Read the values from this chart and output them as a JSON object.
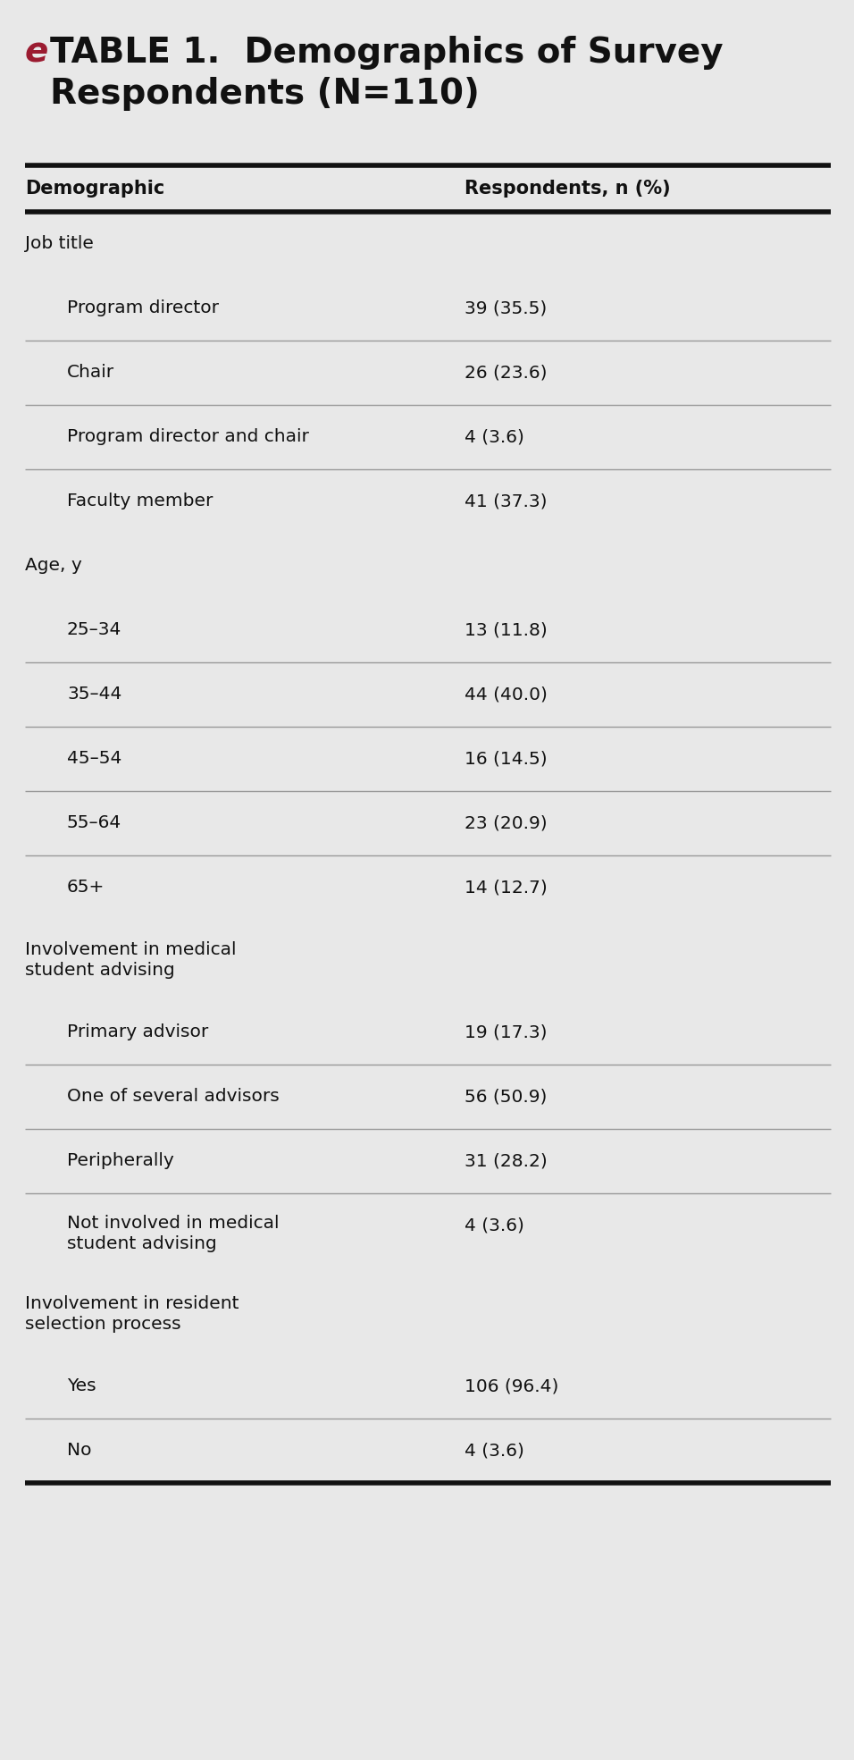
{
  "title_e": "e",
  "title_rest": "TABLE 1.  Demographics of Survey\nRespondents (N=110)",
  "bg_color": "#e8e8e8",
  "header_line_color": "#111111",
  "divider_color": "#999999",
  "col1_header": "Demographic",
  "col2_header": "Respondents, n (%)",
  "red_color": "#9b1b30",
  "text_color": "#111111",
  "rows": [
    {
      "label": "Demographic",
      "value": "Respondents, n (%)",
      "type": "header",
      "divider_after": false
    },
    {
      "label": "Job title",
      "value": "",
      "type": "section",
      "divider_after": false
    },
    {
      "label": "Program director",
      "value": "39 (35.5)",
      "type": "item",
      "divider_after": true
    },
    {
      "label": "Chair",
      "value": "26 (23.6)",
      "type": "item",
      "divider_after": true
    },
    {
      "label": "Program director and chair",
      "value": "4 (3.6)",
      "type": "item",
      "divider_after": true
    },
    {
      "label": "Faculty member",
      "value": "41 (37.3)",
      "type": "item",
      "divider_after": false
    },
    {
      "label": "Age, y",
      "value": "",
      "type": "section",
      "divider_after": false
    },
    {
      "label": "25–34",
      "value": "13 (11.8)",
      "type": "item",
      "divider_after": true
    },
    {
      "label": "35–44",
      "value": "44 (40.0)",
      "type": "item",
      "divider_after": true
    },
    {
      "label": "45–54",
      "value": "16 (14.5)",
      "type": "item",
      "divider_after": true
    },
    {
      "label": "55–64",
      "value": "23 (20.9)",
      "type": "item",
      "divider_after": true
    },
    {
      "label": "65+",
      "value": "14 (12.7)",
      "type": "item",
      "divider_after": false
    },
    {
      "label": "Involvement in medical\nstudent advising",
      "value": "",
      "type": "section2",
      "divider_after": false
    },
    {
      "label": "Primary advisor",
      "value": "19 (17.3)",
      "type": "item",
      "divider_after": true
    },
    {
      "label": "One of several advisors",
      "value": "56 (50.9)",
      "type": "item",
      "divider_after": true
    },
    {
      "label": "Peripherally",
      "value": "31 (28.2)",
      "type": "item",
      "divider_after": true
    },
    {
      "label": "Not involved in medical\nstudent advising",
      "value": "4 (3.6)",
      "type": "item2",
      "divider_after": false
    },
    {
      "label": "Involvement in resident\nselection process",
      "value": "",
      "type": "section2",
      "divider_after": false
    },
    {
      "label": "Yes",
      "value": "106 (96.4)",
      "type": "item",
      "divider_after": true
    },
    {
      "label": "No",
      "value": "4 (3.6)",
      "type": "item",
      "divider_after": false
    }
  ]
}
